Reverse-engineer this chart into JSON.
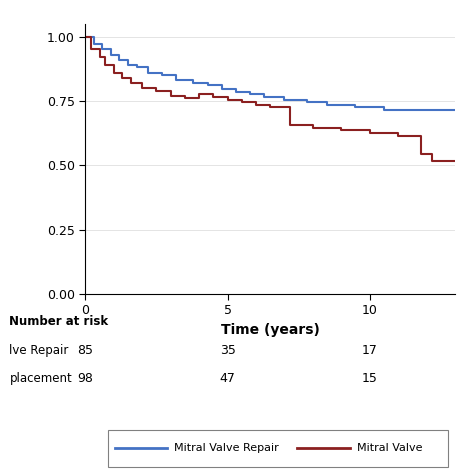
{
  "title": "",
  "xlabel": "Time (years)",
  "ylabel": "",
  "xlim": [
    0,
    13
  ],
  "ylim": [
    0,
    1.05
  ],
  "yticks": [
    0.0,
    0.25,
    0.5,
    0.75,
    1.0
  ],
  "xticks": [
    0,
    5,
    10
  ],
  "color_repair": "#4472C4",
  "color_replacement": "#8B2020",
  "number_at_risk_label": "Number at risk",
  "at_risk_times": [
    0,
    5,
    10
  ],
  "repair_at_risk": [
    85,
    35,
    17
  ],
  "replacement_at_risk": [
    98,
    47,
    15
  ],
  "legend_repair": "Mitral Valve Repair",
  "legend_replacement": "Mitral Valve",
  "background_color": "#ffffff",
  "grid_color": "#d0d0d0",
  "repair_label_short": "lve Repair",
  "replacement_label_short": "placement",
  "repair_steps_x": [
    0,
    0.3,
    0.3,
    0.6,
    0.6,
    0.9,
    0.9,
    1.2,
    1.2,
    1.5,
    1.5,
    1.8,
    1.8,
    2.2,
    2.2,
    2.7,
    2.7,
    3.2,
    3.2,
    3.8,
    3.8,
    4.3,
    4.3,
    4.8,
    4.8,
    5.3,
    5.3,
    5.8,
    5.8,
    6.3,
    6.3,
    7.0,
    7.0,
    7.8,
    7.8,
    8.5,
    8.5,
    9.5,
    9.5,
    10.5,
    10.5,
    11.5,
    11.5,
    13.0
  ],
  "repair_steps_y": [
    1.0,
    1.0,
    0.97,
    0.97,
    0.95,
    0.95,
    0.93,
    0.93,
    0.91,
    0.91,
    0.89,
    0.89,
    0.88,
    0.88,
    0.86,
    0.86,
    0.85,
    0.85,
    0.83,
    0.83,
    0.82,
    0.82,
    0.81,
    0.81,
    0.795,
    0.795,
    0.785,
    0.785,
    0.775,
    0.775,
    0.765,
    0.765,
    0.755,
    0.755,
    0.745,
    0.745,
    0.735,
    0.735,
    0.725,
    0.725,
    0.715,
    0.715,
    0.715,
    0.715
  ],
  "replacement_steps_x": [
    0,
    0.2,
    0.2,
    0.5,
    0.5,
    0.7,
    0.7,
    1.0,
    1.0,
    1.3,
    1.3,
    1.6,
    1.6,
    2.0,
    2.0,
    2.5,
    2.5,
    3.0,
    3.0,
    3.5,
    3.5,
    4.0,
    4.0,
    4.5,
    4.5,
    5.0,
    5.0,
    5.5,
    5.5,
    6.0,
    6.0,
    6.5,
    6.5,
    7.2,
    7.2,
    8.0,
    8.0,
    9.0,
    9.0,
    10.0,
    10.0,
    11.0,
    11.0,
    11.8,
    11.8,
    12.2,
    12.2,
    13.0
  ],
  "replacement_steps_y": [
    1.0,
    1.0,
    0.95,
    0.95,
    0.92,
    0.92,
    0.89,
    0.89,
    0.86,
    0.86,
    0.84,
    0.84,
    0.82,
    0.82,
    0.8,
    0.8,
    0.79,
    0.79,
    0.77,
    0.77,
    0.76,
    0.76,
    0.775,
    0.775,
    0.765,
    0.765,
    0.755,
    0.755,
    0.745,
    0.745,
    0.735,
    0.735,
    0.725,
    0.725,
    0.655,
    0.655,
    0.645,
    0.645,
    0.635,
    0.635,
    0.625,
    0.625,
    0.615,
    0.615,
    0.545,
    0.545,
    0.515,
    0.515
  ]
}
